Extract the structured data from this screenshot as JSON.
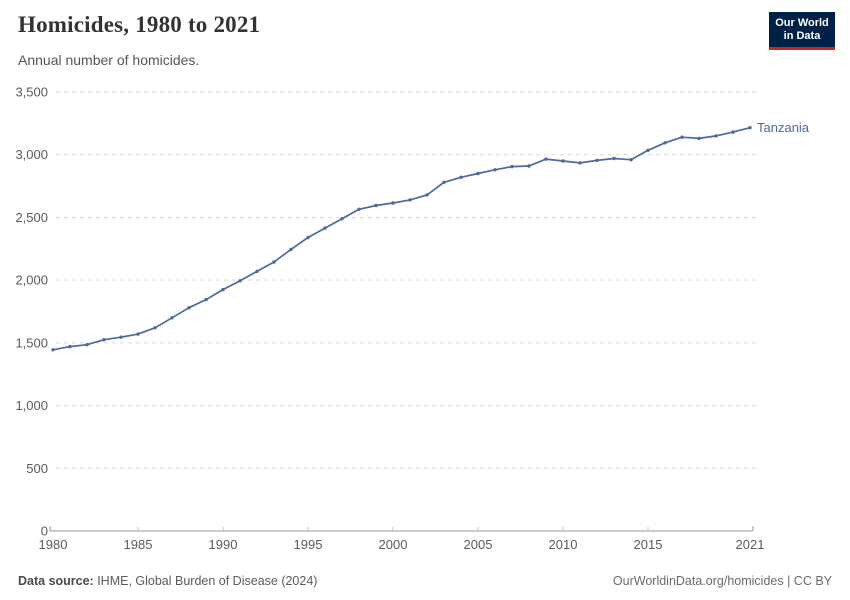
{
  "header": {
    "title": "Homicides, 1980 to 2021",
    "subtitle": "Annual number of homicides.",
    "logo": {
      "line1": "Our World",
      "line2": "in Data",
      "bg_color": "#002147",
      "accent_color": "#c7281e"
    }
  },
  "chart_data": {
    "type": "line",
    "title": "Homicides, 1980 to 2021",
    "subtitle": "Annual number of homicides.",
    "xlabel": "",
    "ylabel": "",
    "x": [
      1980,
      1981,
      1982,
      1983,
      1984,
      1985,
      1986,
      1987,
      1988,
      1989,
      1990,
      1991,
      1992,
      1993,
      1994,
      1995,
      1996,
      1997,
      1998,
      1999,
      2000,
      2001,
      2002,
      2003,
      2004,
      2005,
      2006,
      2007,
      2008,
      2009,
      2010,
      2011,
      2012,
      2013,
      2014,
      2015,
      2016,
      2017,
      2018,
      2019,
      2020,
      2021
    ],
    "series": [
      {
        "name": "Tanzania",
        "color": "#4c6a9c",
        "values": [
          1445,
          1470,
          1485,
          1525,
          1545,
          1570,
          1620,
          1700,
          1780,
          1845,
          1925,
          1995,
          2070,
          2145,
          2245,
          2340,
          2415,
          2490,
          2565,
          2595,
          2615,
          2640,
          2680,
          2780,
          2820,
          2850,
          2880,
          2905,
          2910,
          2965,
          2950,
          2935,
          2955,
          2970,
          2960,
          3035,
          3095,
          3140,
          3130,
          3150,
          3180,
          3215
        ]
      }
    ],
    "ylim": [
      0,
      3500
    ],
    "yticks": [
      0,
      500,
      1000,
      1500,
      2000,
      2500,
      3000,
      3500
    ],
    "xticks": [
      1980,
      1985,
      1990,
      1995,
      2000,
      2005,
      2010,
      2015,
      2021
    ],
    "grid": "horizontal-dashed",
    "gridline_color": "#dadada",
    "axis_color": "#999999",
    "tick_label_color": "#5b5b5b",
    "legend_position": "end-of-line-label"
  },
  "footer": {
    "source_label": "Data source:",
    "source_text": " IHME, Global Burden of Disease (2024)",
    "rights": "OurWorldinData.org/homicides | CC BY"
  }
}
